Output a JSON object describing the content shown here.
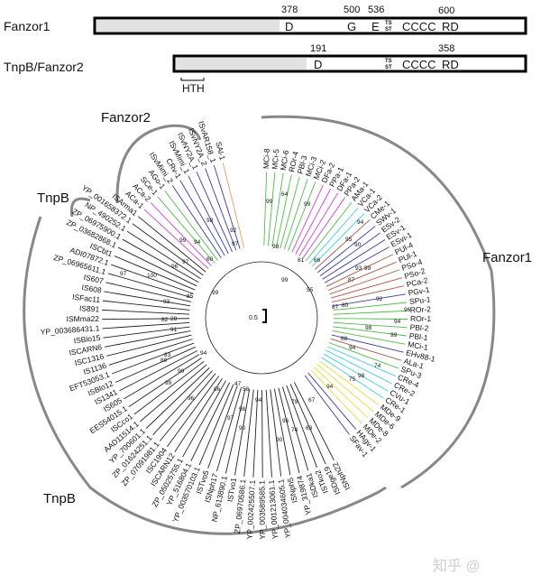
{
  "domains": {
    "fanzor1": {
      "name": "Fanzor1",
      "positions": [
        "378",
        "500",
        "536",
        "600"
      ],
      "motifs": [
        "D",
        "G",
        "E",
        "TS",
        "ST",
        "CCCC",
        "RD"
      ]
    },
    "tnpb": {
      "name": "TnpB/Fanzor2",
      "positions": [
        "191",
        "358"
      ],
      "motifs": [
        "D",
        "TS",
        "ST",
        "CCCC",
        "RD"
      ],
      "hth": "HTH"
    }
  },
  "clades": {
    "fanzor1": "Fanzor1",
    "fanzor2": "Fanzor2",
    "tnpb_small": "TnpB",
    "tnpb_large": "TnpB"
  },
  "scale_bar": "0.5",
  "palette": {
    "g": "#4cbf45",
    "m": "#d040d0",
    "c": "#3fd0e0",
    "b": "#3a3aa8",
    "r": "#b05545",
    "y": "#e6de3a",
    "o": "#e0a060",
    "k": "#222222"
  },
  "fanzor1_leaves": [
    {
      "label": "MCi-8",
      "c": "g"
    },
    {
      "label": "MCi-5",
      "c": "g"
    },
    {
      "label": "MCi-6",
      "c": "g"
    },
    {
      "label": "ROr-4",
      "c": "g"
    },
    {
      "label": "PBl-3",
      "c": "g"
    },
    {
      "label": "MCi-3",
      "c": "g"
    },
    {
      "label": "MCi-2",
      "c": "g"
    },
    {
      "label": "DFa-2",
      "c": "m"
    },
    {
      "label": "PPa-1",
      "c": "m"
    },
    {
      "label": "DFa-1",
      "c": "m"
    },
    {
      "label": "PPa-2",
      "c": "m"
    },
    {
      "label": "AMa-1",
      "c": "g"
    },
    {
      "label": "VCa-1",
      "c": "c"
    },
    {
      "label": "VCa-2",
      "c": "c"
    },
    {
      "label": "CMe-1",
      "c": "r"
    },
    {
      "label": "SWv-1",
      "c": "b"
    },
    {
      "label": "ESv-2",
      "c": "b"
    },
    {
      "label": "ESv-1",
      "c": "b"
    },
    {
      "label": "ESvi-1",
      "c": "b"
    },
    {
      "label": "PUl-4",
      "c": "r"
    },
    {
      "label": "PUl-1",
      "c": "r"
    },
    {
      "label": "PSo-4",
      "c": "r"
    },
    {
      "label": "PSo-2",
      "c": "r"
    },
    {
      "label": "PCa-2",
      "c": "r"
    },
    {
      "label": "PGv-1",
      "c": "b"
    },
    {
      "label": "SPu-1",
      "c": "g"
    },
    {
      "label": "ROr-2",
      "c": "g"
    },
    {
      "label": "ROr-1",
      "c": "g"
    },
    {
      "label": "PBl-2",
      "c": "g"
    },
    {
      "label": "PBl-1",
      "c": "g"
    },
    {
      "label": "MCi-1",
      "c": "g"
    },
    {
      "label": "EHv88-1",
      "c": "b"
    },
    {
      "label": "ALa-1",
      "c": "r"
    },
    {
      "label": "SPu-3",
      "c": "g"
    },
    {
      "label": "CRe-4",
      "c": "c"
    },
    {
      "label": "CRe-2",
      "c": "c"
    },
    {
      "label": "CVu-1",
      "c": "c"
    },
    {
      "label": "CRe-1",
      "c": "c"
    },
    {
      "label": "MDe-9",
      "c": "y"
    },
    {
      "label": "MDe-6",
      "c": "y"
    },
    {
      "label": "MDe-8",
      "c": "y"
    },
    {
      "label": "MDe-2",
      "c": "y"
    },
    {
      "label": "HAgv-1",
      "c": "b"
    },
    {
      "label": "SFav-1",
      "c": "b"
    }
  ],
  "other_leaves": [
    {
      "label": "ISNph22",
      "c": "k"
    },
    {
      "label": "ISDge19",
      "c": "k"
    },
    {
      "label": "ISTko2",
      "c": "k"
    },
    {
      "label": "ISDka1",
      "c": "k"
    },
    {
      "label": "YP_319874",
      "c": "k"
    },
    {
      "label": "ISNph5",
      "c": "k"
    },
    {
      "label": "YP_004034605.1",
      "c": "k"
    },
    {
      "label": "YP_001213061.1",
      "c": "k"
    },
    {
      "label": "YP_003589585.1",
      "c": "k"
    },
    {
      "label": "YP_002425507.1",
      "c": "k"
    },
    {
      "label": "ZP_06970586.1",
      "c": "k"
    },
    {
      "label": "ISTvo1",
      "c": "k"
    },
    {
      "label": "NP_613890.1",
      "c": "k"
    },
    {
      "label": "ISNph17",
      "c": "k"
    },
    {
      "label": "ISTvo5",
      "c": "k"
    },
    {
      "label": "YP_003570103.1",
      "c": "k"
    },
    {
      "label": "YP_516804.1",
      "c": "k"
    },
    {
      "label": "ZP_05025755.1",
      "c": "k"
    },
    {
      "label": "ISCARN12",
      "c": "k"
    },
    {
      "label": "ISC1904",
      "c": "k"
    },
    {
      "label": "ZP_07091981.1",
      "c": "k"
    },
    {
      "label": "ZP_01624251.1",
      "c": "k"
    },
    {
      "label": "YP_700601.1",
      "c": "k"
    },
    {
      "label": "AAD11514.1",
      "c": "k"
    },
    {
      "label": "ISCco1",
      "c": "k"
    },
    {
      "label": "EES54015.1",
      "c": "k"
    },
    {
      "label": "IS605",
      "c": "k"
    },
    {
      "label": "IS1341",
      "c": "k"
    },
    {
      "label": "ISBlo12",
      "c": "k"
    },
    {
      "label": "EFT53053.1",
      "c": "k"
    },
    {
      "label": "IS1136",
      "c": "k"
    },
    {
      "label": "ISC1316",
      "c": "k"
    },
    {
      "label": "ISCARN6",
      "c": "k"
    },
    {
      "label": "ISBlo15",
      "c": "k"
    },
    {
      "label": "YP_003686431.1",
      "c": "k"
    },
    {
      "label": "ISMma22",
      "c": "k"
    },
    {
      "label": "IS891",
      "c": "k"
    },
    {
      "label": "ISFac11",
      "c": "k"
    },
    {
      "label": "IS608",
      "c": "k"
    },
    {
      "label": "IS607",
      "c": "k"
    },
    {
      "label": "ZP_06965611.1",
      "c": "k"
    },
    {
      "label": "ADI07872.1",
      "c": "k"
    },
    {
      "label": "ISCbt1",
      "c": "k"
    },
    {
      "label": "ZP_03682868.1",
      "c": "k"
    },
    {
      "label": "ZP_06975900.1",
      "c": "k"
    },
    {
      "label": "NP_490252.1",
      "c": "k"
    },
    {
      "label": "YP_001658372.1",
      "c": "k"
    },
    {
      "label": "ISArma1",
      "c": "k"
    },
    {
      "label": "ACa-1",
      "c": "m"
    },
    {
      "label": "ACa-2",
      "c": "m"
    },
    {
      "label": "SCe-1",
      "c": "g"
    },
    {
      "label": "AGo-1",
      "c": "g"
    },
    {
      "label": "ISvMimi_2",
      "c": "b"
    },
    {
      "label": "CRv-1",
      "c": "b"
    },
    {
      "label": "ISvMimi_1",
      "c": "b"
    },
    {
      "label": "ISvNY2A_1",
      "c": "b"
    },
    {
      "label": "ISvNY2A_2",
      "c": "b"
    },
    {
      "label": "ISvAR158_1",
      "c": "b"
    },
    {
      "label": "SAl-1",
      "c": "o"
    }
  ],
  "bootstrap": [
    "92",
    "97",
    "98",
    "94",
    "99",
    "97",
    "96",
    "60",
    "97",
    "100",
    "85",
    "99",
    "93",
    "28",
    "82",
    "91",
    "99",
    "64",
    "99",
    "98",
    "81",
    "66",
    "94",
    "95",
    "90",
    "93",
    "99",
    "87",
    "99",
    "55",
    "87",
    "80",
    "92",
    "96",
    "94",
    "98",
    "99",
    "68",
    "83",
    "94",
    "89",
    "90",
    "99",
    "96",
    "86",
    "47",
    "58",
    "98",
    "94",
    "97",
    "90",
    "79",
    "96",
    "74",
    "67",
    "90",
    "63",
    "94",
    "74",
    "98",
    "75",
    "94"
  ],
  "watermark": "知乎 @"
}
